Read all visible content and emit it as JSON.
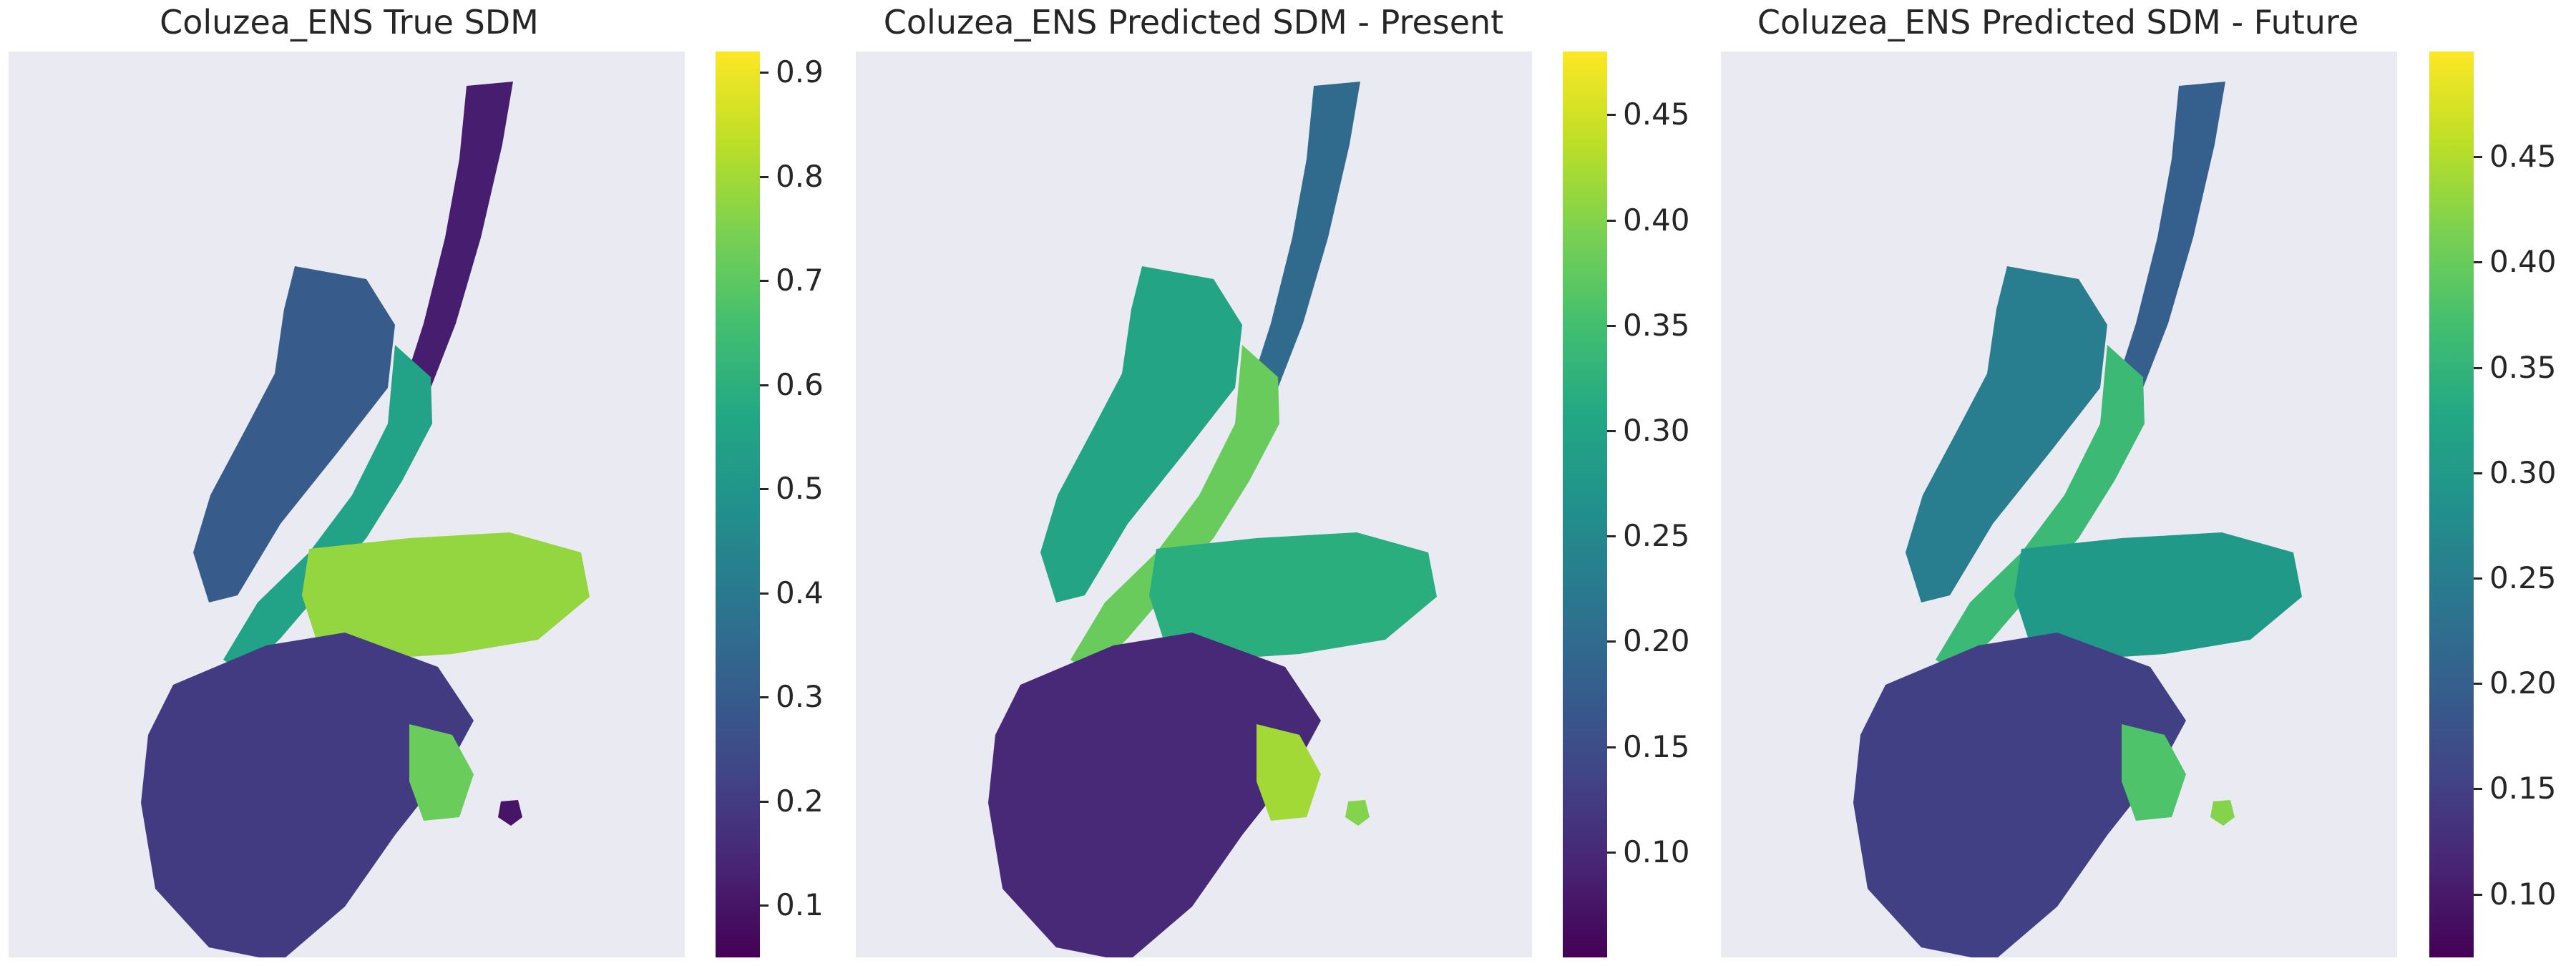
{
  "chart_data": [
    {
      "type": "heatmap",
      "title": "Coluzea_ENS True SDM",
      "colormap": "viridis",
      "background_color": "#eaeaf2",
      "grid": false,
      "colorbar": {
        "range": [
          0.05,
          0.92
        ],
        "ticks": [
          0.1,
          0.2,
          0.3,
          0.4,
          0.5,
          0.6,
          0.7,
          0.8,
          0.9
        ],
        "tick_labels": [
          "0.1",
          "0.2",
          "0.3",
          "0.4",
          "0.5",
          "0.6",
          "0.7",
          "0.8",
          "0.9"
        ]
      },
      "regions": [
        {
          "name": "north-strip",
          "value": 0.12
        },
        {
          "name": "north-island-west",
          "value": 0.3
        },
        {
          "name": "north-island-east-coast",
          "value": 0.55
        },
        {
          "name": "central-arm",
          "value": 0.78
        },
        {
          "name": "southern-body",
          "value": 0.2
        },
        {
          "name": "southern-hotspots",
          "value": 0.72
        },
        {
          "name": "islet",
          "value": 0.1
        }
      ]
    },
    {
      "type": "heatmap",
      "title": "Coluzea_ENS Predicted SDM - Present",
      "colormap": "viridis",
      "background_color": "#eaeaf2",
      "grid": false,
      "colorbar": {
        "range": [
          0.05,
          0.48
        ],
        "ticks": [
          0.1,
          0.15,
          0.2,
          0.25,
          0.3,
          0.35,
          0.4,
          0.45
        ],
        "tick_labels": [
          "0.10",
          "0.15",
          "0.20",
          "0.25",
          "0.30",
          "0.35",
          "0.40",
          "0.45"
        ]
      },
      "regions": [
        {
          "name": "north-strip",
          "value": 0.2
        },
        {
          "name": "north-island-west",
          "value": 0.3
        },
        {
          "name": "north-island-east-coast",
          "value": 0.38
        },
        {
          "name": "central-arm",
          "value": 0.32
        },
        {
          "name": "southern-body",
          "value": 0.1
        },
        {
          "name": "southern-hotspots",
          "value": 0.42
        },
        {
          "name": "islet",
          "value": 0.4
        }
      ]
    },
    {
      "type": "heatmap",
      "title": "Coluzea_ENS Predicted SDM - Future",
      "colormap": "viridis",
      "background_color": "#eaeaf2",
      "grid": false,
      "colorbar": {
        "range": [
          0.07,
          0.5
        ],
        "ticks": [
          0.1,
          0.15,
          0.2,
          0.25,
          0.3,
          0.35,
          0.4,
          0.45
        ],
        "tick_labels": [
          "0.10",
          "0.15",
          "0.20",
          "0.25",
          "0.30",
          "0.35",
          "0.40",
          "0.45"
        ]
      },
      "regions": [
        {
          "name": "north-strip",
          "value": 0.2
        },
        {
          "name": "north-island-west",
          "value": 0.25
        },
        {
          "name": "north-island-east-coast",
          "value": 0.36
        },
        {
          "name": "central-arm",
          "value": 0.3
        },
        {
          "name": "southern-body",
          "value": 0.15
        },
        {
          "name": "southern-hotspots",
          "value": 0.38
        },
        {
          "name": "islet",
          "value": 0.42
        }
      ]
    }
  ]
}
